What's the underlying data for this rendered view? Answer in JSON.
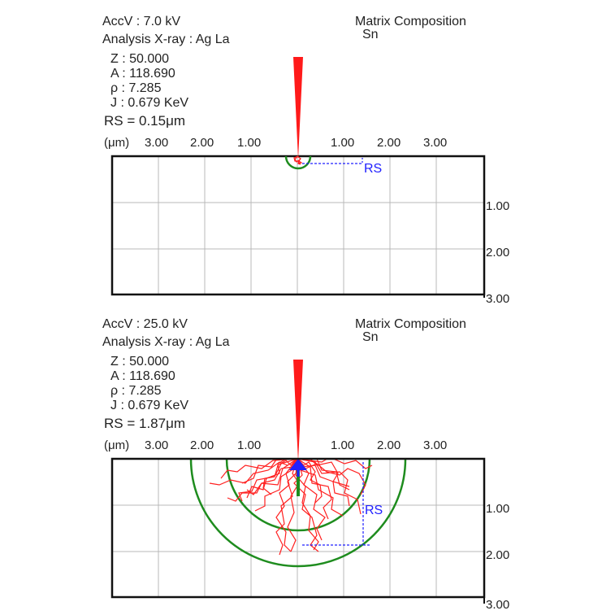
{
  "panels": [
    {
      "accv": "AccV   :  7.0  kV",
      "analysis": "Analysis X-ray   :  Ag La",
      "z": "Z   :  50.000",
      "a": "A   :  118.690",
      "rho": "ρ   :  7.285",
      "j": "J   :  0.679  KeV",
      "rs": "RS = 0.15μm",
      "matrix_title": "Matrix Composition",
      "matrix_element": "Sn",
      "rs_value_um": 0.15,
      "rs_marker": "RS"
    },
    {
      "accv": "AccV   :  25.0  kV",
      "analysis": "Analysis X-ray   :  Ag La",
      "z": "Z   :  50.000",
      "a": "A   :  118.690",
      "rho": "ρ   :  7.285",
      "j": "J   :  0.679  KeV",
      "rs": "RS = 1.87μm",
      "matrix_title": "Matrix Composition",
      "matrix_element": "Sn",
      "rs_value_um": 1.87,
      "rs_marker": "RS"
    }
  ],
  "axis": {
    "unit": "(μm)",
    "top_ticks": [
      "3.00",
      "2.00",
      "1.00",
      "1.00",
      "2.00",
      "3.00"
    ],
    "right_ticks": [
      "1.00",
      "2.00",
      "3.00"
    ]
  },
  "colors": {
    "beam": "#ff1a1a",
    "trajectory": "#ff2020",
    "circle": "#1e8c1e",
    "rs_marker": "#2020ff",
    "grid": "#b8b8b8"
  }
}
